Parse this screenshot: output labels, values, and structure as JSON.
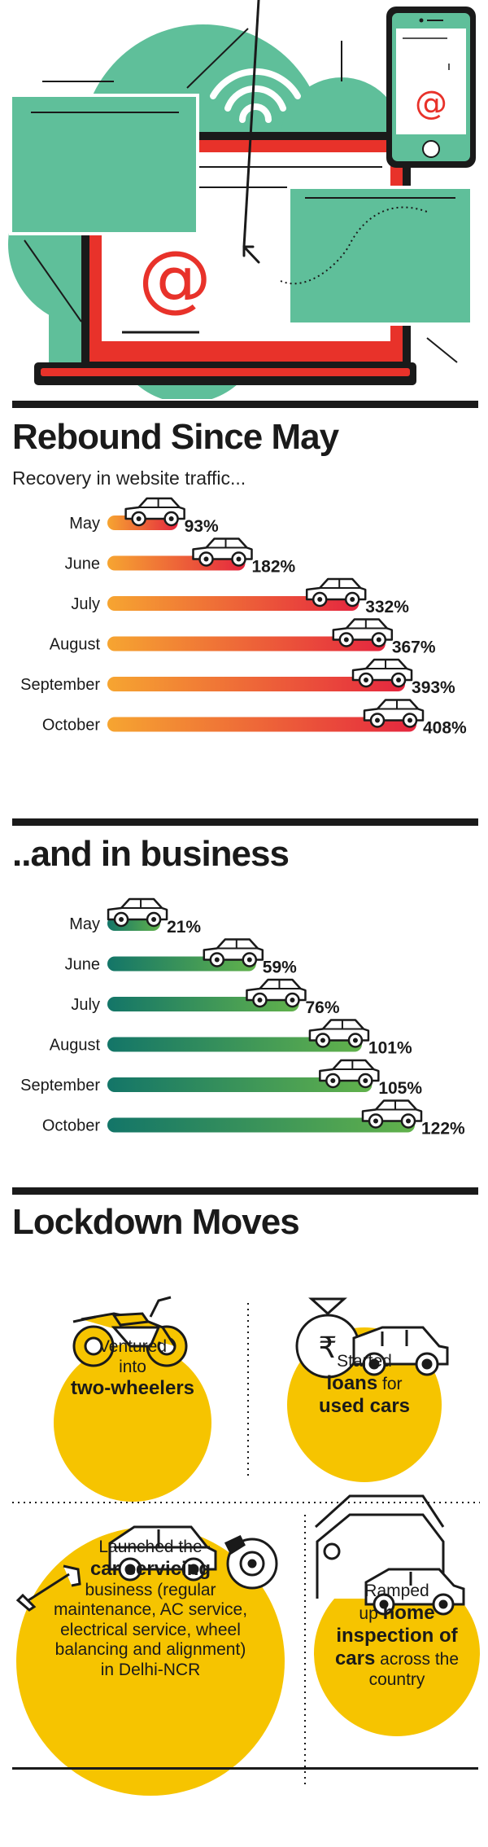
{
  "colors": {
    "mint": "#5fbf9a",
    "red": "#e8322a",
    "dark": "#1a1a1a",
    "yellow": "#f6c400",
    "trafficStart": "#f6a531",
    "trafficEnd": "#e5263f",
    "businessStart": "#137568",
    "businessEnd": "#62b24b"
  },
  "hero": {
    "icons": [
      "laptop-icon",
      "smartphone-icon",
      "wifi-icon",
      "at-sign-icon",
      "browser-window-icon",
      "cursor-arrow-icon"
    ],
    "at_symbol": "@"
  },
  "section_traffic": {
    "title": "Rebound Since May",
    "subtitle": "Recovery in website traffic..."
  },
  "section_business": {
    "title": "..and in business"
  },
  "chart_data": [
    {
      "type": "bar",
      "orientation": "horizontal",
      "title": "Rebound Since May",
      "subtitle": "Recovery in website traffic...",
      "categories": [
        "May",
        "June",
        "July",
        "August",
        "September",
        "October"
      ],
      "values": [
        93,
        182,
        332,
        367,
        393,
        408
      ],
      "labels": [
        "93%",
        "182%",
        "332%",
        "367%",
        "393%",
        "408%"
      ],
      "unit": "%",
      "xlim": [
        0,
        408
      ],
      "marker": "car-icon"
    },
    {
      "type": "bar",
      "orientation": "horizontal",
      "title": "..and in business",
      "categories": [
        "May",
        "June",
        "July",
        "August",
        "September",
        "October"
      ],
      "values": [
        21,
        59,
        76,
        101,
        105,
        122
      ],
      "labels": [
        "21%",
        "59%",
        "76%",
        "101%",
        "105%",
        "122%"
      ],
      "unit": "%",
      "xlim": [
        0,
        122
      ],
      "marker": "car-icon"
    }
  ],
  "lockdown": {
    "title": "Lockdown Moves",
    "moves": [
      {
        "icon": "motorcycle-icon",
        "line1": "Ventured",
        "line2": "into",
        "bold": "two-wheelers"
      },
      {
        "icon": "money-bag-car-icon",
        "line1": "Started",
        "bold1": "loans",
        "rest1": " for",
        "bold2": "used cars"
      },
      {
        "icon": "wrench-car-brake-icon",
        "pre": "Launched the",
        "bold": "car servicing",
        "post": "business (regular maintenance, AC service, electrical service, wheel balancing and alignment) in Delhi-NCR"
      },
      {
        "icon": "garage-car-icon",
        "line1": "Ramped",
        "pre2": "up ",
        "bold1": "home",
        "bold2": "inspection of",
        "bold3": "cars",
        "post": " across the country"
      }
    ]
  }
}
